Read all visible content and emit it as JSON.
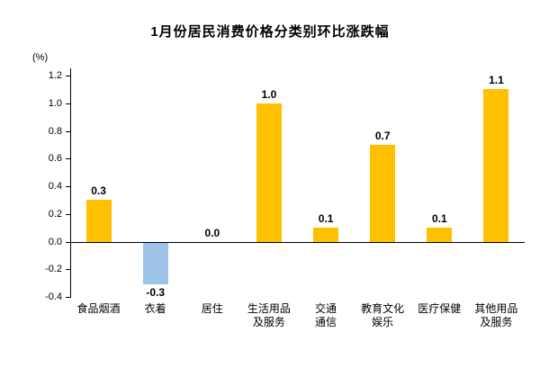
{
  "chart": {
    "title": "1月份居民消费价格分类别环比涨跌幅",
    "y_unit_label": "(%)"
  },
  "chart_data": {
    "type": "bar",
    "title": "1月份居民消费价格分类别环比涨跌幅",
    "categories": [
      "食品烟酒",
      "衣着",
      "居住",
      "生活用品\n及服务",
      "交通\n通信",
      "教育文化\n娱乐",
      "医疗保健",
      "其他用品\n及服务"
    ],
    "values": [
      0.3,
      -0.3,
      0.0,
      1.0,
      0.1,
      0.7,
      0.1,
      1.1
    ],
    "value_labels": [
      "0.3",
      "-0.3",
      "0.0",
      "1.0",
      "0.1",
      "0.7",
      "0.1",
      "1.1"
    ],
    "xlabel": "",
    "ylabel": "(%)",
    "ylim": [
      -0.4,
      1.2
    ],
    "ytick_step": 0.2,
    "ytick_labels": [
      "-0.4",
      "-0.2",
      "0.0",
      "0.2",
      "0.4",
      "0.6",
      "0.8",
      "1.0",
      "1.2"
    ],
    "grid": false,
    "legend": false,
    "bar_color_positive": "#FFC000",
    "bar_color_negative": "#9DC3E6",
    "axis_color": "#000000",
    "text_color": "#000000"
  }
}
